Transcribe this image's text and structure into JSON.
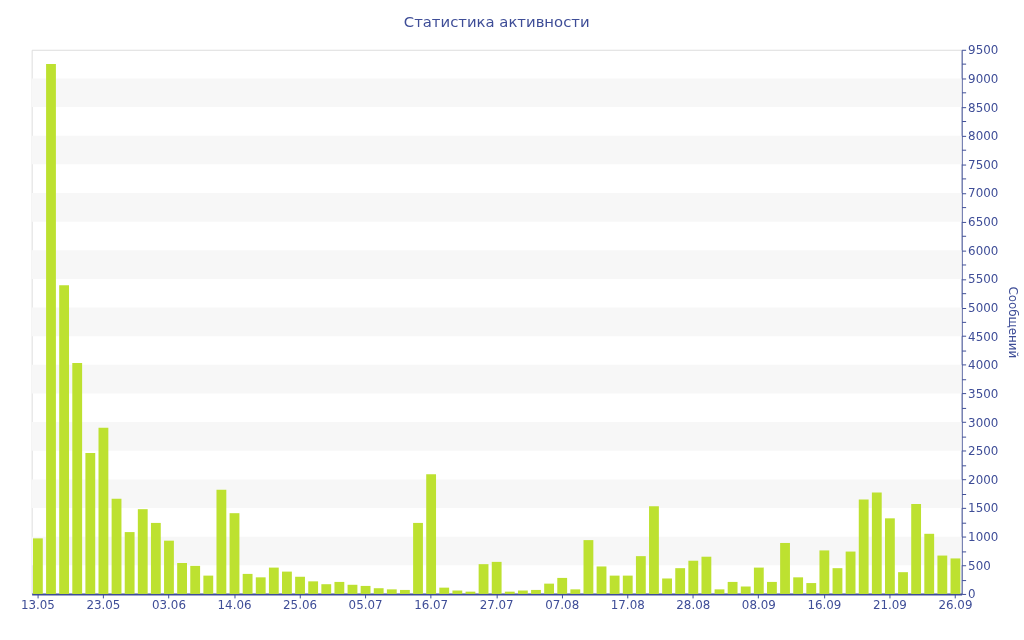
{
  "chart_data": {
    "type": "bar",
    "title": "Статистика активности",
    "ylabel": "Сообщений",
    "categories": [
      "13.05",
      null,
      null,
      null,
      null,
      "23.05",
      null,
      null,
      null,
      null,
      "03.06",
      null,
      null,
      null,
      null,
      "14.06",
      null,
      null,
      null,
      null,
      "25.06",
      null,
      null,
      null,
      null,
      "05.07",
      null,
      null,
      null,
      null,
      "16.07",
      null,
      null,
      null,
      null,
      "27.07",
      null,
      null,
      null,
      null,
      "07.08",
      null,
      null,
      null,
      null,
      "17.08",
      null,
      null,
      null,
      null,
      "28.08",
      null,
      null,
      null,
      null,
      "08.09",
      null,
      null,
      null,
      null,
      "16.09",
      null,
      null,
      null,
      null,
      "21.09",
      null,
      null,
      null,
      null,
      "26.09"
    ],
    "values": [
      970,
      9250,
      5390,
      4030,
      2460,
      2900,
      1660,
      1080,
      1480,
      1240,
      930,
      540,
      490,
      320,
      1820,
      1410,
      350,
      290,
      460,
      390,
      300,
      220,
      170,
      210,
      160,
      140,
      100,
      80,
      70,
      1240,
      2090,
      110,
      60,
      40,
      520,
      560,
      40,
      60,
      70,
      180,
      280,
      80,
      940,
      480,
      320,
      320,
      660,
      1530,
      270,
      450,
      580,
      650,
      80,
      210,
      130,
      460,
      210,
      890,
      290,
      190,
      760,
      450,
      740,
      1650,
      1770,
      1320,
      380,
      1570,
      1050,
      670,
      620
    ],
    "color": "#bde130",
    "ylim": [
      0,
      9500
    ],
    "yticks": [
      0,
      {
        "value": 250,
        "label": null
      },
      500,
      {
        "value": 750,
        "label": null
      },
      1000,
      {
        "value": 1250,
        "label": null
      },
      1500,
      {
        "value": 1750,
        "label": null
      },
      2000,
      {
        "value": 2250,
        "label": null
      },
      2500,
      {
        "value": 2750,
        "label": null
      },
      3000,
      {
        "value": 3250,
        "label": null
      },
      3500,
      {
        "value": 3750,
        "label": null
      },
      4000,
      {
        "value": 4250,
        "label": null
      },
      4500,
      {
        "value": 4750,
        "label": null
      },
      5000,
      {
        "value": 5250,
        "label": null
      },
      5500,
      {
        "value": 5750,
        "label": null
      },
      6000,
      {
        "value": 6250,
        "label": null
      },
      6500,
      {
        "value": 6750,
        "label": null
      },
      7000,
      {
        "value": 7250,
        "label": null
      },
      7500,
      {
        "value": 7750,
        "label": null
      },
      8000,
      {
        "value": 8250,
        "label": null
      },
      8500,
      {
        "value": 8750,
        "label": null
      },
      9000,
      {
        "value": 9250,
        "label": null
      },
      9500
    ],
    "grid": false
  }
}
